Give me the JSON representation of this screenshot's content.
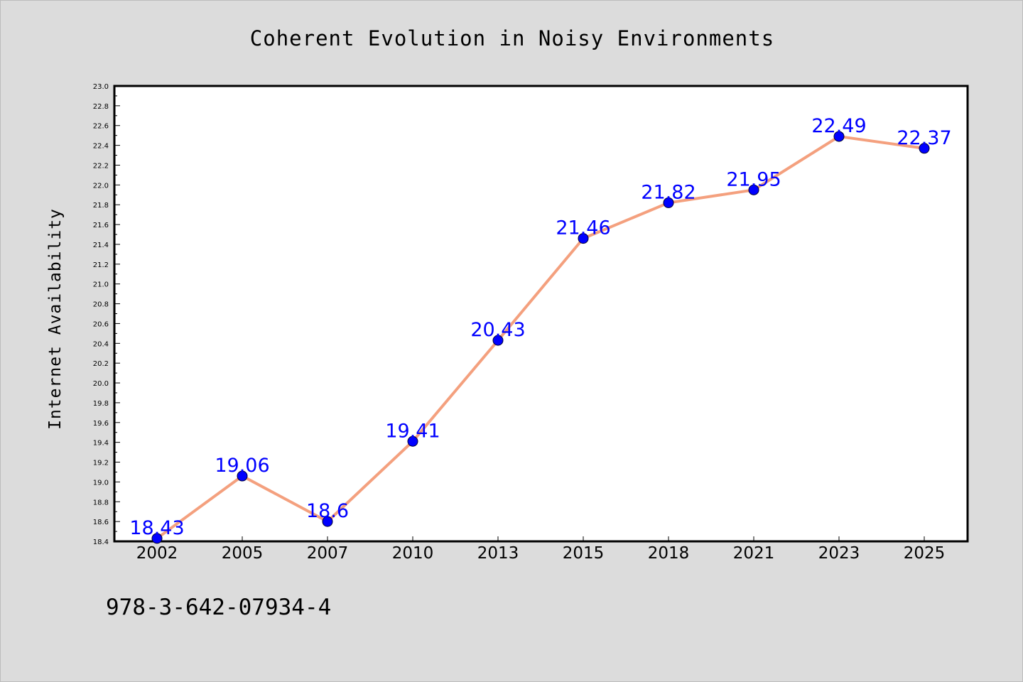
{
  "chart_data": {
    "type": "line",
    "title": "Coherent Evolution in Noisy Environments",
    "xlabel": "",
    "ylabel": "Internet Availability",
    "categories": [
      "2002",
      "2005",
      "2007",
      "2010",
      "2013",
      "2015",
      "2018",
      "2021",
      "2023",
      "2025"
    ],
    "series": [
      {
        "values": [
          18.43,
          19.06,
          18.6,
          19.41,
          20.43,
          21.46,
          21.82,
          21.95,
          22.49,
          22.37
        ],
        "data_labels": [
          "18.43",
          "19.06",
          "18.6",
          "19.41",
          "20.43",
          "21.46",
          "21.82",
          "21.95",
          "22.49",
          "22.37"
        ]
      }
    ],
    "ylim": [
      18.4,
      23.0
    ],
    "yticks": [
      "18.4",
      "18.6",
      "18.8",
      "19.0",
      "19.2",
      "19.4",
      "19.6",
      "19.8",
      "20.0",
      "20.2",
      "20.4",
      "20.6",
      "20.8",
      "21.0",
      "21.2",
      "21.4",
      "21.6",
      "21.8",
      "22.0",
      "22.2",
      "22.4",
      "22.6",
      "22.8",
      "23.0"
    ],
    "grid": false,
    "legend": "none",
    "colors": {
      "background": "#dcdcdc",
      "plot_area": "#ffffff",
      "line": "#f4a07e",
      "marker": "#0000ff",
      "data_label": "#0000ff"
    }
  },
  "footer": {
    "code": "978-3-642-07934-4"
  }
}
